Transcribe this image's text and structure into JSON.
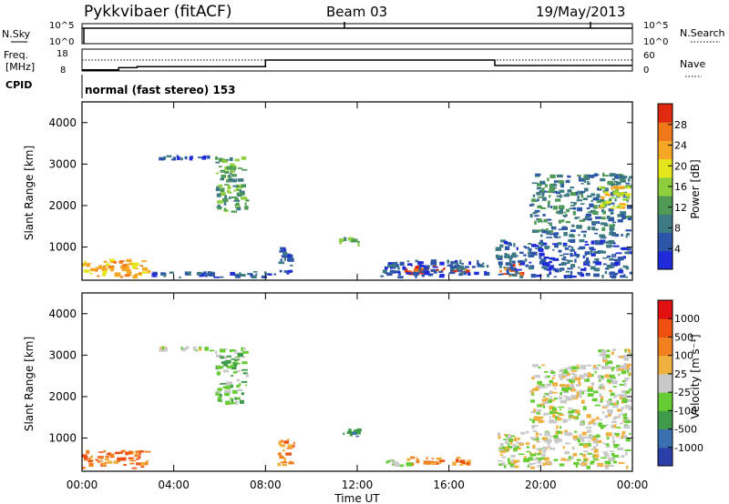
{
  "header": {
    "station": "Pykkvibaer (fitACF)",
    "beam": "Beam 03",
    "date": "19/May/2013"
  },
  "top_panels": {
    "nsky_label": "N.Sky",
    "nsky_ticks": [
      "10^5",
      "10^0"
    ],
    "nsearch_label": "N.Search",
    "nsearch_ticks": [
      "10^5",
      "10^0"
    ],
    "freq_label_1": "Freq.",
    "freq_label_2": "[MHz]",
    "freq_ticks": [
      "18",
      "8"
    ],
    "nave_label": "Nave",
    "nave_ticks": [
      "60",
      "0"
    ],
    "cpid_label": "CPID",
    "cpid_text": "normal (fast stereo) 153",
    "freq_steps": [
      {
        "t0": 0.0,
        "t1": 1.6,
        "mhz": 8.5
      },
      {
        "t0": 1.6,
        "t1": 2.4,
        "mhz": 9.5
      },
      {
        "t0": 2.4,
        "t1": 8.0,
        "mhz": 10.0
      },
      {
        "t0": 8.0,
        "t1": 18.0,
        "mhz": 13.0
      },
      {
        "t0": 18.0,
        "t1": 24.0,
        "mhz": 10.5
      }
    ]
  },
  "chart_data": [
    {
      "type": "heatmap",
      "ylabel": "Slant Range [km]",
      "ylim": [
        200,
        4500
      ],
      "yticks": [
        "1000",
        "2000",
        "3000",
        "4000"
      ],
      "colorbar_label": "Power [dB]",
      "colorbar_ticks": [
        "28",
        "24",
        "20",
        "16",
        "12",
        "8",
        "4"
      ],
      "colors": [
        "#1f2bd9",
        "#2d55a8",
        "#3d7a84",
        "#4f9a54",
        "#8fcf3d",
        "#e6e61c",
        "#f5a623",
        "#f07818",
        "#e02a10"
      ],
      "echoes": [
        {
          "t0": 0.0,
          "t1": 3.0,
          "r0": 240,
          "r1": 720,
          "level": 6
        },
        {
          "t0": 3.0,
          "t1": 8.5,
          "r0": 240,
          "r1": 420,
          "level": 1
        },
        {
          "t0": 3.3,
          "t1": 5.8,
          "r0": 3080,
          "r1": 3230,
          "level": 1
        },
        {
          "t0": 5.8,
          "t1": 7.3,
          "r0": 1800,
          "r1": 3200,
          "level": 3
        },
        {
          "t0": 8.5,
          "t1": 9.3,
          "r0": 300,
          "r1": 1000,
          "level": 1
        },
        {
          "t0": 11.2,
          "t1": 12.2,
          "r0": 1000,
          "r1": 1250,
          "level": 3
        },
        {
          "t0": 14.0,
          "t1": 17.0,
          "r0": 320,
          "r1": 560,
          "level": 8
        },
        {
          "t0": 13.0,
          "t1": 17.8,
          "r0": 240,
          "r1": 700,
          "level": 1
        },
        {
          "t0": 18.2,
          "t1": 19.3,
          "r0": 240,
          "r1": 650,
          "level": 7
        },
        {
          "t0": 18.0,
          "t1": 24.0,
          "r0": 240,
          "r1": 1200,
          "level": 1
        },
        {
          "t0": 19.5,
          "t1": 24.0,
          "r0": 1200,
          "r1": 2800,
          "level": 2
        },
        {
          "t0": 22.5,
          "t1": 24.0,
          "r0": 1900,
          "r1": 2500,
          "level": 5
        }
      ]
    },
    {
      "type": "heatmap",
      "xlabel": "Time UT",
      "xticks": [
        "00:00",
        "04:00",
        "08:00",
        "12:00",
        "16:00",
        "20:00",
        "00:00"
      ],
      "ylabel": "Slant Range [km]",
      "ylim": [
        200,
        4500
      ],
      "yticks": [
        "1000",
        "2000",
        "3000",
        "4000"
      ],
      "colorbar_label": "Velocity [m s⁻¹]",
      "colorbar_ticks": [
        "1000",
        "500",
        "100",
        "25",
        "-25",
        "-100",
        "-500",
        "-1000"
      ],
      "colors": [
        "#2a3fa8",
        "#3a6fb0",
        "#3f9a4a",
        "#66cc33",
        "#c9c9c9",
        "#f0b040",
        "#f08020",
        "#f05010",
        "#e01010"
      ],
      "echoes": [
        {
          "t0": 0.0,
          "t1": 3.0,
          "r0": 240,
          "r1": 720,
          "level": 6
        },
        {
          "t0": 3.3,
          "t1": 5.8,
          "r0": 3080,
          "r1": 3230,
          "level": 4
        },
        {
          "t0": 5.8,
          "t1": 7.3,
          "r0": 1800,
          "r1": 3200,
          "level": 3
        },
        {
          "t0": 8.5,
          "t1": 9.3,
          "r0": 300,
          "r1": 1000,
          "level": 6
        },
        {
          "t0": 11.2,
          "t1": 12.2,
          "r0": 1000,
          "r1": 1250,
          "level": 2
        },
        {
          "t0": 14.0,
          "t1": 17.0,
          "r0": 320,
          "r1": 560,
          "level": 6
        },
        {
          "t0": 13.0,
          "t1": 14.5,
          "r0": 300,
          "r1": 500,
          "level": 3
        },
        {
          "t0": 18.0,
          "t1": 24.0,
          "r0": 240,
          "r1": 1200,
          "level": 4
        },
        {
          "t0": 19.5,
          "t1": 24.0,
          "r0": 1200,
          "r1": 2800,
          "level": 4
        },
        {
          "t0": 22.5,
          "t1": 24.0,
          "r0": 2600,
          "r1": 3200,
          "level": 4
        }
      ]
    }
  ]
}
